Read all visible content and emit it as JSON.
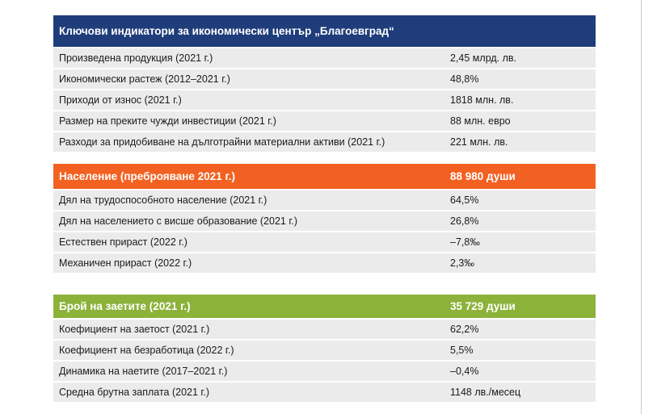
{
  "economy": {
    "title": "Ключови индикатори за икономически център „Благоевград“",
    "rows": [
      {
        "label": "Произведена продукция (2021 г.)",
        "value": "2,45 млрд. лв."
      },
      {
        "label": "Икономически растеж (2012–2021 г.)",
        "value": "48,8%"
      },
      {
        "label": "Приходи от износ (2021 г.)",
        "value": "1818 млн. лв."
      },
      {
        "label": "Размер на преките чужди инвестиции (2021 г.)",
        "value": "88 млн. евро"
      },
      {
        "label": "Разходи за придобиване на дълготрайни материални активи (2021 г.)",
        "value": "221 млн. лв."
      }
    ]
  },
  "population": {
    "title": "Население (преброяване 2021 г.)",
    "value": "88 980 души",
    "rows": [
      {
        "label": "Дял на трудоспособното население (2021 г.)",
        "value": "64,5%"
      },
      {
        "label": "Дял на населението с висше образование (2021 г.)",
        "value": "26,8%"
      },
      {
        "label": "Естествен прираст (2022 г.)",
        "value": "–7,8‰"
      },
      {
        "label": "Механичен прираст (2022 г.)",
        "value": "2,3‰"
      }
    ]
  },
  "employment": {
    "title": "Брой на заетите (2021 г.)",
    "value": "35 729 души",
    "rows": [
      {
        "label": "Коефициент на заетост (2021 г.)",
        "value": "62,2%"
      },
      {
        "label": "Коефициент на безработица (2022 г.)",
        "value": "5,5%"
      },
      {
        "label": "Динамика на наетите (2017–2021 г.)",
        "value": "–0,4%"
      },
      {
        "label": "Средна брутна заплата (2021 г.)",
        "value": "1148 лв./месец"
      }
    ]
  },
  "colors": {
    "economy_header": "#1f3d7a",
    "population_header": "#f26122",
    "employment_header": "#8cb23a",
    "row_background": "#ebebeb"
  }
}
